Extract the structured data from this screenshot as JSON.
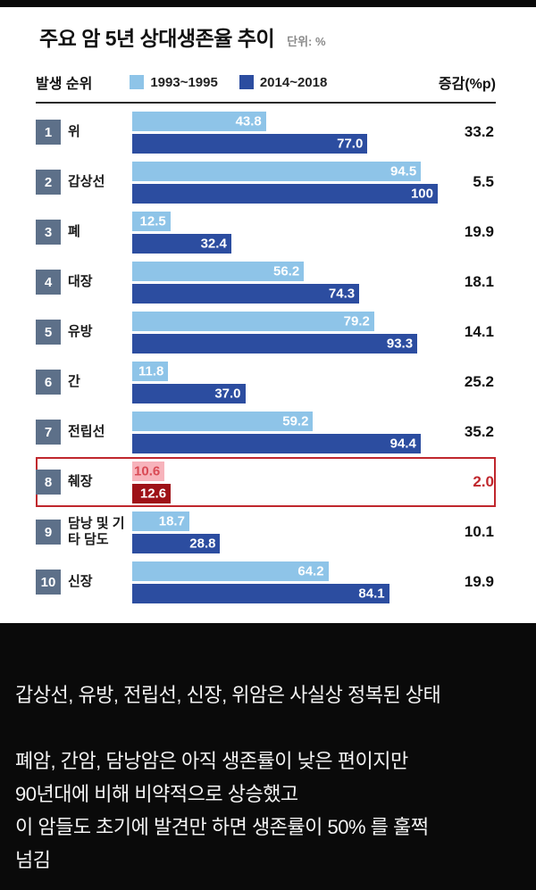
{
  "chart": {
    "title": "주요 암 5년 상대생존율 추이",
    "unit": "단위: %",
    "rank_header": "발생 순위",
    "change_header": "증감(%p)",
    "legend": [
      {
        "label": "1993~1995",
        "color": "#8ec4e8"
      },
      {
        "label": "2014~2018",
        "color": "#2c4da0"
      }
    ],
    "colors": {
      "bar_old": "#8ec4e8",
      "bar_new": "#2c4da0",
      "hl_bar_old": "#f7b3bb",
      "hl_bar_new": "#9e1117",
      "hl_text": "#d94a55",
      "hl_border": "#c0272d",
      "rank_bg": "#5d7089"
    }
  },
  "chart_data": {
    "type": "bar",
    "title": "주요 암 5년 상대생존율 추이",
    "unit": "%",
    "orientation": "horizontal",
    "xlim": [
      0,
      100
    ],
    "legend_position": "top",
    "categories": [
      "위",
      "갑상선",
      "폐",
      "대장",
      "유방",
      "간",
      "전립선",
      "췌장",
      "담낭 및 기타 담도",
      "신장"
    ],
    "series": [
      {
        "name": "1993~1995",
        "values": [
          43.8,
          94.5,
          12.5,
          56.2,
          79.2,
          11.8,
          59.2,
          10.6,
          18.7,
          64.2
        ]
      },
      {
        "name": "2014~2018",
        "values": [
          77.0,
          100,
          32.4,
          74.3,
          93.3,
          37.0,
          94.4,
          12.6,
          28.8,
          84.1
        ]
      }
    ],
    "changes_pp": [
      33.2,
      5.5,
      19.9,
      18.1,
      14.1,
      25.2,
      35.2,
      2.0,
      10.1,
      19.9
    ],
    "rows": [
      {
        "rank": "1",
        "name": "위",
        "old": 43.8,
        "old_label": "43.8",
        "new": 77.0,
        "new_label": "77.0",
        "change": "33.2",
        "highlight": false
      },
      {
        "rank": "2",
        "name": "갑상선",
        "old": 94.5,
        "old_label": "94.5",
        "new": 100,
        "new_label": "100",
        "change": "5.5",
        "highlight": false
      },
      {
        "rank": "3",
        "name": "폐",
        "old": 12.5,
        "old_label": "12.5",
        "new": 32.4,
        "new_label": "32.4",
        "change": "19.9",
        "highlight": false
      },
      {
        "rank": "4",
        "name": "대장",
        "old": 56.2,
        "old_label": "56.2",
        "new": 74.3,
        "new_label": "74.3",
        "change": "18.1",
        "highlight": false
      },
      {
        "rank": "5",
        "name": "유방",
        "old": 79.2,
        "old_label": "79.2",
        "new": 93.3,
        "new_label": "93.3",
        "change": "14.1",
        "highlight": false
      },
      {
        "rank": "6",
        "name": "간",
        "old": 11.8,
        "old_label": "11.8",
        "new": 37.0,
        "new_label": "37.0",
        "change": "25.2",
        "highlight": false
      },
      {
        "rank": "7",
        "name": "전립선",
        "old": 59.2,
        "old_label": "59.2",
        "new": 94.4,
        "new_label": "94.4",
        "change": "35.2",
        "highlight": false
      },
      {
        "rank": "8",
        "name": "췌장",
        "old": 10.6,
        "old_label": "10.6",
        "new": 12.6,
        "new_label": "12.6",
        "change": "2.0",
        "highlight": true
      },
      {
        "rank": "9",
        "name": "담낭 및 기타 담도",
        "old": 18.7,
        "old_label": "18.7",
        "new": 28.8,
        "new_label": "28.8",
        "change": "10.1",
        "highlight": false
      },
      {
        "rank": "10",
        "name": "신장",
        "old": 64.2,
        "old_label": "64.2",
        "new": 84.1,
        "new_label": "84.1",
        "change": "19.9",
        "highlight": false
      }
    ]
  },
  "commentary": {
    "lines": [
      "갑상선, 유방, 전립선, 신장, 위암은 사실상 정복된 상태",
      "",
      "폐암, 간암, 담낭암은 아직 생존률이 낮은 편이지만",
      "90년대에 비해 비약적으로 상승했고",
      "이 암들도 초기에 발견만 하면 생존률이 50% 를 훌쩍",
      "넘김"
    ]
  }
}
